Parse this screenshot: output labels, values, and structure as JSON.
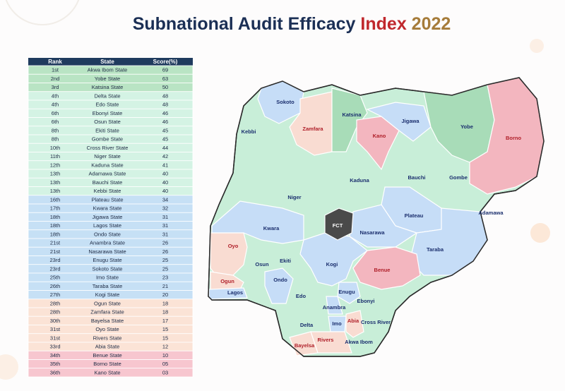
{
  "header": {
    "title_main": "Subnational Audit Efficacy",
    "title_index": "Index",
    "title_year": "2022"
  },
  "table": {
    "columns": [
      "Rank",
      "State",
      "Score(%)"
    ],
    "rows": [
      {
        "rank": "1st",
        "state": "Akwa Ibom State",
        "score": "69",
        "color": "#b9e4c4"
      },
      {
        "rank": "2nd",
        "state": "Yobe State",
        "score": "63",
        "color": "#b9e4c4"
      },
      {
        "rank": "3rd",
        "state": "Katsina State",
        "score": "50",
        "color": "#b9e4c4"
      },
      {
        "rank": "4th",
        "state": "Delta State",
        "score": "48",
        "color": "#d4f3e4"
      },
      {
        "rank": "4th",
        "state": "Edo State",
        "score": "48",
        "color": "#d4f3e4"
      },
      {
        "rank": "6th",
        "state": "Ebonyi State",
        "score": "46",
        "color": "#d4f3e4"
      },
      {
        "rank": "6th",
        "state": "Osun State",
        "score": "46",
        "color": "#d4f3e4"
      },
      {
        "rank": "8th",
        "state": "Ekiti State",
        "score": "45",
        "color": "#d4f3e4"
      },
      {
        "rank": "8th",
        "state": "Gombe State",
        "score": "45",
        "color": "#d4f3e4"
      },
      {
        "rank": "10th",
        "state": "Cross River State",
        "score": "44",
        "color": "#d4f3e4"
      },
      {
        "rank": "11th",
        "state": "Niger State",
        "score": "42",
        "color": "#d4f3e4"
      },
      {
        "rank": "12th",
        "state": "Kaduna State",
        "score": "41",
        "color": "#d4f3e4"
      },
      {
        "rank": "13th",
        "state": "Adamawa State",
        "score": "40",
        "color": "#d4f3e4"
      },
      {
        "rank": "13th",
        "state": "Bauchi State",
        "score": "40",
        "color": "#d4f3e4"
      },
      {
        "rank": "13th",
        "state": "Kebbi State",
        "score": "40",
        "color": "#d4f3e4"
      },
      {
        "rank": "16th",
        "state": "Plateau State",
        "score": "34",
        "color": "#c6e0f5"
      },
      {
        "rank": "17th",
        "state": "Kwara State",
        "score": "32",
        "color": "#c6e0f5"
      },
      {
        "rank": "18th",
        "state": "Jigawa State",
        "score": "31",
        "color": "#c6e0f5"
      },
      {
        "rank": "18th",
        "state": "Lagos State",
        "score": "31",
        "color": "#c6e0f5"
      },
      {
        "rank": "18th",
        "state": "Ondo State",
        "score": "31",
        "color": "#c6e0f5"
      },
      {
        "rank": "21st",
        "state": "Anambra State",
        "score": "26",
        "color": "#c6e0f5"
      },
      {
        "rank": "21st",
        "state": "Nasarawa State",
        "score": "26",
        "color": "#c6e0f5"
      },
      {
        "rank": "23rd",
        "state": "Enugu State",
        "score": "25",
        "color": "#c6e0f5"
      },
      {
        "rank": "23rd",
        "state": "Sokoto State",
        "score": "25",
        "color": "#c6e0f5"
      },
      {
        "rank": "25th",
        "state": "Imo State",
        "score": "23",
        "color": "#c6e0f5"
      },
      {
        "rank": "26th",
        "state": "Taraba State",
        "score": "21",
        "color": "#c6e0f5"
      },
      {
        "rank": "27th",
        "state": "Kogi State",
        "score": "20",
        "color": "#c6e0f5"
      },
      {
        "rank": "28th",
        "state": "Ogun State",
        "score": "18",
        "color": "#fbe3d6"
      },
      {
        "rank": "28th",
        "state": "Zamfara State",
        "score": "18",
        "color": "#fbe3d6"
      },
      {
        "rank": "30th",
        "state": "Bayelsa State",
        "score": "17",
        "color": "#fbe3d6"
      },
      {
        "rank": "31st",
        "state": "Oyo State",
        "score": "15",
        "color": "#fbe3d6"
      },
      {
        "rank": "31st",
        "state": "Rivers State",
        "score": "15",
        "color": "#fbe3d6"
      },
      {
        "rank": "33rd",
        "state": "Abia State",
        "score": "12",
        "color": "#fbe3d6"
      },
      {
        "rank": "34th",
        "state": "Benue State",
        "score": "10",
        "color": "#f7c6cf"
      },
      {
        "rank": "35th",
        "state": "Borno State",
        "score": "05",
        "color": "#f7c6cf"
      },
      {
        "rank": "36th",
        "state": "Kano State",
        "score": "03",
        "color": "#f7c6cf"
      }
    ]
  },
  "map": {
    "labels": [
      {
        "text": "Sokoto",
        "color": "#1b2f6e"
      },
      {
        "text": "Kebbi",
        "color": "#1b2f6e"
      },
      {
        "text": "Zamfara",
        "color": "#b0202a"
      },
      {
        "text": "Katsina",
        "color": "#1b2f6e"
      },
      {
        "text": "Kano",
        "color": "#b0202a"
      },
      {
        "text": "Jigawa",
        "color": "#1b2f6e"
      },
      {
        "text": "Yobe",
        "color": "#1b2f6e"
      },
      {
        "text": "Borno",
        "color": "#b0202a"
      },
      {
        "text": "Kaduna",
        "color": "#1b2f6e"
      },
      {
        "text": "Bauchi",
        "color": "#1b2f6e"
      },
      {
        "text": "Gombe",
        "color": "#1b2f6e"
      },
      {
        "text": "Niger",
        "color": "#1b2f6e"
      },
      {
        "text": "Adamawa",
        "color": "#1b2f6e"
      },
      {
        "text": "Plateau",
        "color": "#1b2f6e"
      },
      {
        "text": "FCT",
        "color": "#ffffff"
      },
      {
        "text": "Kwara",
        "color": "#1b2f6e"
      },
      {
        "text": "Nasarawa",
        "color": "#1b2f6e"
      },
      {
        "text": "Taraba",
        "color": "#1b2f6e"
      },
      {
        "text": "Oyo",
        "color": "#b0202a"
      },
      {
        "text": "Benue",
        "color": "#b0202a"
      },
      {
        "text": "Kogi",
        "color": "#1b2f6e"
      },
      {
        "text": "Osun",
        "color": "#1b2f6e"
      },
      {
        "text": "Ekiti",
        "color": "#1b2f6e"
      },
      {
        "text": "Ondo",
        "color": "#1b2f6e"
      },
      {
        "text": "Ogun",
        "color": "#b0202a"
      },
      {
        "text": "Lagos",
        "color": "#1b2f6e"
      },
      {
        "text": "Edo",
        "color": "#1b2f6e"
      },
      {
        "text": "Enugu",
        "color": "#1b2f6e"
      },
      {
        "text": "Ebonyi",
        "color": "#1b2f6e"
      },
      {
        "text": "Anambra",
        "color": "#1b2f6e"
      },
      {
        "text": "Cross River",
        "color": "#1b2f6e"
      },
      {
        "text": "Delta",
        "color": "#1b2f6e"
      },
      {
        "text": "Imo",
        "color": "#1b2f6e"
      },
      {
        "text": "Abia",
        "color": "#b0202a"
      },
      {
        "text": "Rivers",
        "color": "#b0202a"
      },
      {
        "text": "Bayelsa",
        "color": "#b0202a"
      },
      {
        "text": "Akwa Ibom",
        "color": "#1b2f6e"
      }
    ]
  }
}
